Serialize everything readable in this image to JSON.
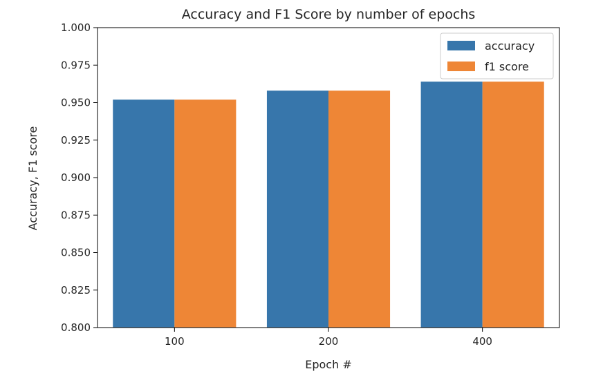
{
  "chart_data": {
    "type": "bar",
    "title": "Accuracy and F1 Score by number of epochs",
    "xlabel": "Epoch #",
    "ylabel": "Accuracy, F1 score",
    "categories": [
      "100",
      "200",
      "400"
    ],
    "series": [
      {
        "name": "accuracy",
        "values": [
          0.952,
          0.958,
          0.964
        ],
        "color": "#3776ab"
      },
      {
        "name": "f1 score",
        "values": [
          0.952,
          0.958,
          0.964
        ],
        "color": "#ee8636"
      }
    ],
    "ylim": [
      0.8,
      1.0
    ],
    "yticks": [
      0.8,
      0.825,
      0.85,
      0.875,
      0.9,
      0.925,
      0.95,
      0.975,
      1.0
    ],
    "ytick_labels": [
      "0.800",
      "0.825",
      "0.850",
      "0.875",
      "0.900",
      "0.925",
      "0.950",
      "0.975",
      "1.000"
    ],
    "grid": false,
    "legend_position": "top-right"
  }
}
